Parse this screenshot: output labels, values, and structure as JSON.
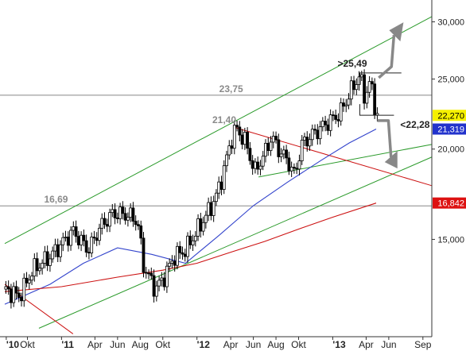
{
  "chart_data": {
    "type": "candlestick",
    "y_scale": "log",
    "ylim": [
      11000,
      32000
    ],
    "y_ticks": [
      {
        "value": 15000,
        "label": "15,000"
      },
      {
        "value": 20000,
        "label": "20,000"
      },
      {
        "value": 25000,
        "label": "25,000"
      },
      {
        "value": 30000,
        "label": "30,000"
      }
    ],
    "x_start": "2010-08-01",
    "x_end": "2013-09-25",
    "x_ticks": [
      {
        "date": "2010-08-05",
        "label": "'10",
        "year": true
      },
      {
        "date": "2010-10-01",
        "label": "Okt",
        "year": false
      },
      {
        "date": "2011-01-01",
        "label": "'11",
        "year": true
      },
      {
        "date": "2011-04-01",
        "label": "Apr",
        "year": false
      },
      {
        "date": "2011-06-01",
        "label": "Jun",
        "year": false
      },
      {
        "date": "2011-08-01",
        "label": "Aug",
        "year": false
      },
      {
        "date": "2011-10-01",
        "label": "Okt",
        "year": false
      },
      {
        "date": "2012-01-01",
        "label": "'12",
        "year": true
      },
      {
        "date": "2012-04-01",
        "label": "Apr",
        "year": false
      },
      {
        "date": "2012-06-01",
        "label": "Jun",
        "year": false
      },
      {
        "date": "2012-08-01",
        "label": "Aug",
        "year": false
      },
      {
        "date": "2012-10-01",
        "label": "Okt",
        "year": false
      },
      {
        "date": "2013-01-01",
        "label": "'13",
        "year": true
      },
      {
        "date": "2013-04-01",
        "label": "Apr",
        "year": false
      },
      {
        "date": "2013-06-01",
        "label": "Jun",
        "year": false
      },
      {
        "date": "2013-09-01",
        "label": "Sep",
        "year": false
      }
    ],
    "price_path": [
      [
        "2010-08-01",
        12800
      ],
      [
        "2010-09-10",
        12500
      ],
      [
        "2010-10-15",
        13600
      ],
      [
        "2010-12-01",
        14200
      ],
      [
        "2011-02-01",
        15400
      ],
      [
        "2011-03-15",
        14500
      ],
      [
        "2011-04-15",
        15600
      ],
      [
        "2011-05-20",
        16300
      ],
      [
        "2011-07-01",
        16200
      ],
      [
        "2011-07-25",
        15900
      ],
      [
        "2011-08-10",
        13800
      ],
      [
        "2011-09-10",
        12800
      ],
      [
        "2011-10-01",
        13200
      ],
      [
        "2011-11-01",
        14200
      ],
      [
        "2011-12-01",
        14500
      ],
      [
        "2012-01-20",
        16000
      ],
      [
        "2012-02-20",
        17100
      ],
      [
        "2012-03-10",
        18400
      ],
      [
        "2012-04-01",
        20500
      ],
      [
        "2012-04-15",
        21400
      ],
      [
        "2012-05-10",
        20500
      ],
      [
        "2012-06-05",
        18600
      ],
      [
        "2012-07-01",
        19700
      ],
      [
        "2012-07-20",
        20800
      ],
      [
        "2012-08-10",
        19900
      ],
      [
        "2012-09-01",
        19300
      ],
      [
        "2012-09-20",
        18400
      ],
      [
        "2012-10-10",
        20300
      ],
      [
        "2012-11-10",
        21000
      ],
      [
        "2012-12-15",
        21700
      ],
      [
        "2013-01-20",
        22400
      ],
      [
        "2013-02-25",
        24400
      ],
      [
        "2013-03-15",
        25300
      ],
      [
        "2013-03-28",
        23600
      ],
      [
        "2013-04-12",
        24800
      ],
      [
        "2013-04-22",
        23400
      ],
      [
        "2013-04-28",
        22270
      ]
    ],
    "series": [
      {
        "name": "",
        "color": "#3344cc",
        "points": [
          [
            "2010-08-01",
            12200
          ],
          [
            "2010-12-01",
            13000
          ],
          [
            "2011-03-01",
            13900
          ],
          [
            "2011-06-01",
            14600
          ],
          [
            "2011-09-01",
            14300
          ],
          [
            "2011-12-01",
            13900
          ],
          [
            "2012-03-01",
            15200
          ],
          [
            "2012-06-01",
            16700
          ],
          [
            "2012-09-01",
            18000
          ],
          [
            "2012-12-01",
            19300
          ],
          [
            "2013-02-15",
            20400
          ],
          [
            "2013-04-28",
            21319
          ]
        ]
      },
      {
        "name": "",
        "color": "#cc1111",
        "points": [
          [
            "2010-08-01",
            12700
          ],
          [
            "2011-01-01",
            12900
          ],
          [
            "2011-06-01",
            13300
          ],
          [
            "2011-10-01",
            13600
          ],
          [
            "2012-01-01",
            13900
          ],
          [
            "2012-04-01",
            14400
          ],
          [
            "2012-07-01",
            14900
          ],
          [
            "2012-10-01",
            15500
          ],
          [
            "2013-01-01",
            16100
          ],
          [
            "2013-04-28",
            16842
          ]
        ]
      }
    ],
    "trendlines": [
      {
        "color": "#2a9a2a",
        "from": [
          "2010-08-01",
          14800
        ],
        "to": [
          "2013-09-25",
          30500
        ]
      },
      {
        "color": "#2a9a2a",
        "from": [
          "2010-11-01",
          11300
        ],
        "to": [
          "2013-09-25",
          19500
        ]
      },
      {
        "color": "#2a9a2a",
        "from": [
          "2012-06-15",
          18300
        ],
        "to": [
          "2013-09-25",
          20300
        ]
      },
      {
        "color": "#cc1111",
        "from": [
          "2012-04-15",
          21400
        ],
        "to": [
          "2013-09-25",
          17800
        ]
      },
      {
        "color": "#cc1111",
        "from": [
          "2010-08-01",
          13000
        ],
        "to": [
          "2011-02-01",
          11100
        ]
      }
    ],
    "levels": [
      {
        "value": 23750,
        "label": "23,75",
        "color": "#888888",
        "label_date": "2012-03-01"
      },
      {
        "value": 16690,
        "label": "16,69",
        "color": "#888888",
        "label_date": "2010-11-15"
      }
    ],
    "peak_label": {
      "label": "21,40",
      "date": "2012-02-20",
      "value": 21400
    },
    "resistance": {
      "label": ">25,49",
      "value": 25490,
      "from": "2013-03-15",
      "to": "2013-07-05"
    },
    "support": {
      "label": "<22,28",
      "value": 22280,
      "from": "2013-03-15",
      "to": "2013-06-15"
    },
    "arrows": [
      {
        "direction": "up",
        "color": "#888888",
        "from": [
          "2013-05-05",
          25100
        ],
        "to": [
          "2013-07-15",
          29800
        ]
      },
      {
        "direction": "down",
        "color": "#888888",
        "from": [
          "2013-05-01",
          21900
        ],
        "to": [
          "2013-06-20",
          18900
        ]
      }
    ],
    "price_badges": [
      {
        "value": 22270,
        "label": "22,270",
        "bg": "#f5f000",
        "fg": "#000000"
      },
      {
        "value": 21319,
        "label": "21,319",
        "bg": "#2233cc",
        "fg": "#ffffff"
      },
      {
        "value": 16842,
        "label": "16,842",
        "bg": "#dd1111",
        "fg": "#ffffff"
      }
    ]
  }
}
